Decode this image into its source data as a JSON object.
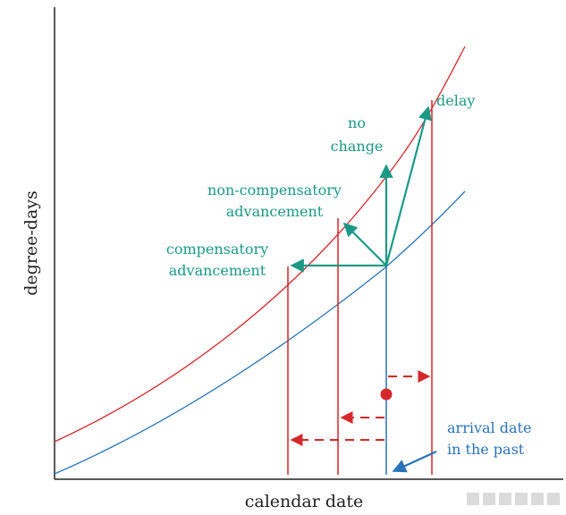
{
  "axes": {
    "x_label": "calendar date",
    "y_label": "degree-days"
  },
  "labels": {
    "delay": "delay",
    "no_change_1": "no",
    "no_change_2": "change",
    "noncomp_1": "non-compensatory",
    "noncomp_2": "advancement",
    "comp_1": "compensatory",
    "comp_2": "advancement",
    "arrival_1": "arrival date",
    "arrival_2": "in the past"
  },
  "colors": {
    "red": "#d6282b",
    "blue": "#2a73b8",
    "teal": "#1a9a86",
    "axis": "#222222"
  }
}
